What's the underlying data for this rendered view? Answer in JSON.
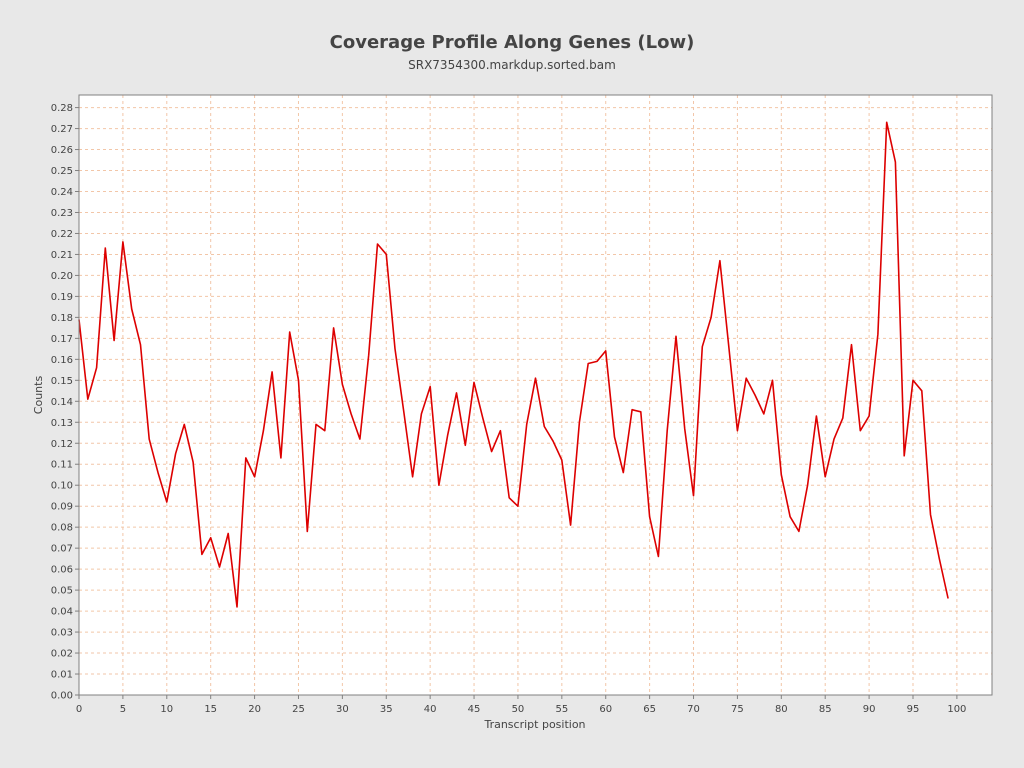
{
  "chart_data": {
    "type": "line",
    "title": "Coverage Profile Along Genes (Low)",
    "subtitle": "SRX7354300.markdup.sorted.bam",
    "xlabel": "Transcript position",
    "ylabel": "Counts",
    "xlim": [
      0,
      104
    ],
    "ylim": [
      0,
      0.286
    ],
    "xticks": [
      0,
      5,
      10,
      15,
      20,
      25,
      30,
      35,
      40,
      45,
      50,
      55,
      60,
      65,
      70,
      75,
      80,
      85,
      90,
      95,
      100
    ],
    "yticks": [
      0.0,
      0.01,
      0.02,
      0.03,
      0.04,
      0.05,
      0.06,
      0.07,
      0.08,
      0.09,
      0.1,
      0.11,
      0.12,
      0.13,
      0.14,
      0.15,
      0.16,
      0.17,
      0.18,
      0.19,
      0.2,
      0.21,
      0.22,
      0.23,
      0.24,
      0.25,
      0.26,
      0.27,
      0.28
    ],
    "xtick_labels": [
      "0",
      "5",
      "10",
      "15",
      "20",
      "25",
      "30",
      "35",
      "40",
      "45",
      "50",
      "55",
      "60",
      "65",
      "70",
      "75",
      "80",
      "85",
      "90",
      "95",
      "100"
    ],
    "ytick_labels": [
      "0.00",
      "0.01",
      "0.02",
      "0.03",
      "0.04",
      "0.05",
      "0.06",
      "0.07",
      "0.08",
      "0.09",
      "0.10",
      "0.11",
      "0.12",
      "0.13",
      "0.14",
      "0.15",
      "0.16",
      "0.17",
      "0.18",
      "0.19",
      "0.20",
      "0.21",
      "0.22",
      "0.23",
      "0.24",
      "0.25",
      "0.26",
      "0.27",
      "0.28"
    ],
    "grid": true,
    "legend": "none",
    "series": [
      {
        "color": "#dd0000",
        "x": [
          0,
          1,
          2,
          3,
          4,
          5,
          6,
          7,
          8,
          9,
          10,
          11,
          12,
          13,
          14,
          15,
          16,
          17,
          18,
          19,
          20,
          21,
          22,
          23,
          24,
          25,
          26,
          27,
          28,
          29,
          30,
          31,
          32,
          33,
          34,
          35,
          36,
          37,
          38,
          39,
          40,
          41,
          42,
          43,
          44,
          45,
          46,
          47,
          48,
          49,
          50,
          51,
          52,
          53,
          54,
          55,
          56,
          57,
          58,
          59,
          60,
          61,
          62,
          63,
          64,
          65,
          66,
          67,
          68,
          69,
          70,
          71,
          72,
          73,
          74,
          75,
          76,
          77,
          78,
          79,
          80,
          81,
          82,
          83,
          84,
          85,
          86,
          87,
          88,
          89,
          90,
          91,
          92,
          93,
          94,
          95,
          96,
          97,
          98,
          99
        ],
        "values": [
          0.179,
          0.141,
          0.156,
          0.213,
          0.169,
          0.216,
          0.184,
          0.167,
          0.122,
          0.106,
          0.092,
          0.115,
          0.129,
          0.111,
          0.067,
          0.075,
          0.061,
          0.077,
          0.042,
          0.113,
          0.104,
          0.126,
          0.154,
          0.113,
          0.173,
          0.15,
          0.078,
          0.129,
          0.126,
          0.175,
          0.148,
          0.134,
          0.122,
          0.162,
          0.215,
          0.21,
          0.165,
          0.135,
          0.104,
          0.134,
          0.147,
          0.1,
          0.124,
          0.144,
          0.119,
          0.149,
          0.132,
          0.116,
          0.126,
          0.094,
          0.09,
          0.129,
          0.151,
          0.128,
          0.121,
          0.112,
          0.081,
          0.13,
          0.158,
          0.159,
          0.164,
          0.123,
          0.106,
          0.136,
          0.135,
          0.085,
          0.066,
          0.126,
          0.171,
          0.127,
          0.095,
          0.166,
          0.18,
          0.207,
          0.167,
          0.126,
          0.151,
          0.143,
          0.134,
          0.15,
          0.105,
          0.085,
          0.078,
          0.1,
          0.133,
          0.104,
          0.122,
          0.132,
          0.167,
          0.126,
          0.133,
          0.172,
          0.273,
          0.254,
          0.114,
          0.15,
          0.145,
          0.086,
          0.065,
          0.046
        ]
      }
    ]
  }
}
